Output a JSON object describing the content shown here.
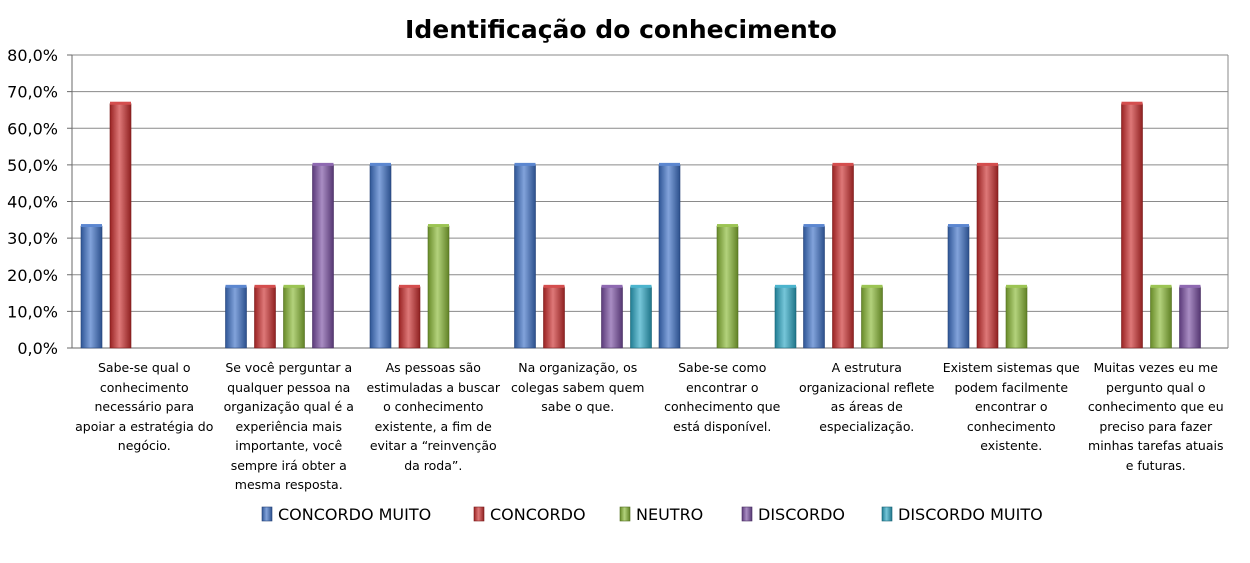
{
  "colors": {
    "concordo_muito": "#3f72c8",
    "concordo": "#cc2f2f",
    "neutro": "#8ab936",
    "discordo": "#7a4fa3",
    "discordo_muito": "#2ca7c4"
  },
  "chart_data": {
    "type": "bar",
    "title": "Identificação do conhecimento",
    "xlabel": "",
    "ylabel": "",
    "ylim": [
      0,
      80
    ],
    "yticks": [
      "0,0%",
      "10,0%",
      "20,0%",
      "30,0%",
      "40,0%",
      "50,0%",
      "60,0%",
      "70,0%",
      "80,0%"
    ],
    "grid": true,
    "legend_position": "bottom",
    "categories": [
      "Sabe-se qual o conhecimento necessário para apoiar a estratégia do negócio.",
      "Se você perguntar a qualquer pessoa na organização qual é a experiência mais importante, você sempre irá obter a mesma resposta.",
      "As pessoas são estimuladas a buscar o conhecimento existente, a fim de evitar a “reinvenção da roda”.",
      "Na organização, os colegas sabem quem sabe o que.",
      "Sabe-se como encontrar o conhecimento que está disponível.",
      "A estrutura organizacional reflete as áreas de especialização.",
      "Existem sistemas que podem facilmente encontrar o conhecimento existente.",
      "Muitas vezes eu me pergunto qual o conhecimento que eu preciso para fazer minhas tarefas atuais e futuras."
    ],
    "series": [
      {
        "name": "CONCORDO MUITO",
        "color_key": "concordo_muito",
        "values": [
          33.3,
          16.7,
          50.0,
          50.0,
          50.0,
          33.3,
          33.3,
          0
        ]
      },
      {
        "name": "CONCORDO",
        "color_key": "concordo",
        "values": [
          66.7,
          16.7,
          16.7,
          16.7,
          0,
          50.0,
          50.0,
          66.7
        ]
      },
      {
        "name": "NEUTRO",
        "color_key": "neutro",
        "values": [
          0,
          16.7,
          33.3,
          0,
          33.3,
          16.7,
          16.7,
          16.7
        ]
      },
      {
        "name": "DISCORDO",
        "color_key": "discordo",
        "values": [
          0,
          50.0,
          0,
          16.7,
          0,
          0,
          0,
          16.7
        ]
      },
      {
        "name": "DISCORDO MUITO",
        "color_key": "discordo_muito",
        "values": [
          0,
          0,
          0,
          16.7,
          16.7,
          0,
          0,
          0
        ]
      }
    ]
  }
}
